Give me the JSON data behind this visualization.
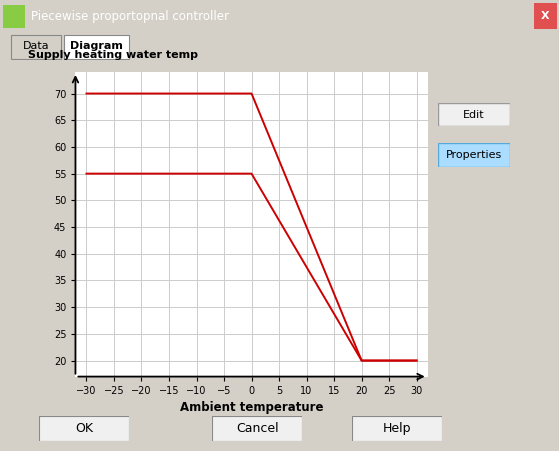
{
  "title": "Piecewise proportopnal controller",
  "ylabel": "Supply heating water temp",
  "xlabel": "Ambient temperature",
  "line1_x": [
    -30,
    0,
    20,
    30
  ],
  "line1_y": [
    70,
    70,
    20,
    20
  ],
  "line2_x": [
    -30,
    0,
    20,
    30
  ],
  "line2_y": [
    55,
    55,
    20,
    20
  ],
  "line_color": "#cc0000",
  "line_width": 1.4,
  "xlim": [
    -32,
    32
  ],
  "ylim": [
    17,
    74
  ],
  "xticks": [
    -30,
    -25,
    -20,
    -15,
    -10,
    -5,
    0,
    5,
    10,
    15,
    20,
    25,
    30
  ],
  "yticks": [
    20,
    25,
    30,
    35,
    40,
    45,
    50,
    55,
    60,
    65,
    70
  ],
  "grid_color": "#cccccc",
  "frame_bg": "#d4d0c8",
  "plot_bg": "#ffffff",
  "tab_labels": [
    "Data",
    "Diagram"
  ],
  "button_labels": [
    "Edit",
    "Properties"
  ],
  "ok_cancel_help": [
    "OK",
    "Cancel",
    "Help"
  ],
  "titlebar_color": "#5b9bd5",
  "titlebar_text_color": "#ffffff",
  "close_btn_color": "#e05050"
}
